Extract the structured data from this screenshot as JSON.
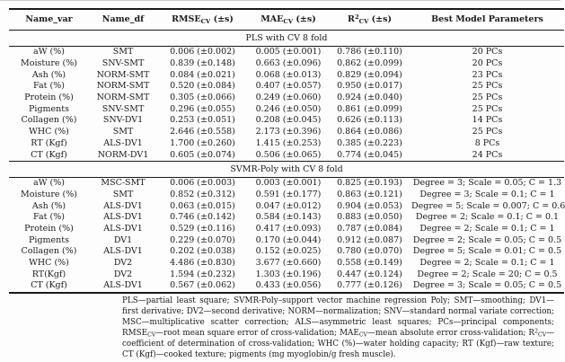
{
  "colors": {
    "text": "#1a1a1a",
    "rule": "#1a1a1a",
    "background": "#fdfdfd",
    "page_top_edge": "#cccccc"
  },
  "table": {
    "columns": [
      {
        "name": "name_var",
        "width": 87,
        "label": [
          {
            "t": "Name_var"
          }
        ]
      },
      {
        "name": "name_df",
        "width": 74,
        "label": [
          {
            "t": "Name_df"
          }
        ]
      },
      {
        "name": "rmse_cv",
        "width": 99,
        "label": [
          {
            "t": "RMSE"
          },
          {
            "sub": "CV"
          },
          {
            "t": " (±s)"
          }
        ]
      },
      {
        "name": "mae_cv",
        "width": 88,
        "label": [
          {
            "t": "MAE"
          },
          {
            "sub": "CV"
          },
          {
            "t": " (±s)"
          }
        ]
      },
      {
        "name": "r2_cv",
        "width": 89,
        "label": [
          {
            "t": "R"
          },
          {
            "sup": "2"
          },
          {
            "sub": "CV"
          },
          {
            "t": " (±s)"
          }
        ]
      },
      {
        "name": "best_model_parameters",
        "width": 169,
        "label": [
          {
            "t": "Best Model Parameters"
          }
        ]
      }
    ],
    "sections": [
      {
        "title": "PLS with CV 8 fold",
        "rows": [
          [
            "aW (%)",
            "SMT",
            "0.006 (±0.002)",
            "0.005 (±0.001)",
            "0.786 (±0.110)",
            "20 PCs"
          ],
          [
            "Moisture (%)",
            "SNV-SMT",
            "0.839 (±0.148)",
            "0.663 (±0.096)",
            "0.862 (±0.099)",
            "20 PCs"
          ],
          [
            "Ash (%)",
            "NORM-SMT",
            "0.084 (±0.021)",
            "0.068 (±0.013)",
            "0.829 (±0.094)",
            "23 PCs"
          ],
          [
            "Fat (%)",
            "NORM-SMT",
            "0.520 (±0.084)",
            "0.407 (±0.057)",
            "0.950 (±0.017)",
            "25 PCs"
          ],
          [
            "Protein (%)",
            "NORM-SMT",
            "0.305 (±0.066)",
            "0.249 (±0.060)",
            "0.924 (±0.040)",
            "25 PCs"
          ],
          [
            "Pigments",
            "SNV-SMT",
            "0.296 (±0.055)",
            "0.246 (±0.050)",
            "0.861 (±0.099)",
            "25 PCs"
          ],
          [
            "Collagen (%)",
            "SNV-DV1",
            "0.253 (±0.051)",
            "0.208 (±0.045)",
            "0.626 (±0.113)",
            "14 PCs"
          ],
          [
            "WHC (%)",
            "SMT",
            "2.646 (±0.558)",
            "2.173 (±0.396)",
            "0.864 (±0.086)",
            "25 PCs"
          ],
          [
            "RT (Kgf)",
            "ALS-DV1",
            "1.700 (±0.260)",
            "1.415 (±0.253)",
            "0.385 (±0.223)",
            "8 PCs"
          ],
          [
            "CT (Kgf)",
            "NORM-DV1",
            "0.605 (±0.074)",
            "0.506 (±0.065)",
            "0.774 (±0.045)",
            "24 PCs"
          ]
        ]
      },
      {
        "title": "SVMR-Poly with CV 8 fold",
        "rows": [
          [
            "aW (%)",
            "MSC-SMT",
            "0.006 (±0.003)",
            "0.003 (±0.001)",
            "0.825 (±0.193)",
            "Degree = 3; Scale = 0.05; C = 1.3"
          ],
          [
            "Moisture (%)",
            "SMT",
            "0.852 (±0.312)",
            "0.591 (±0.177)",
            "0.863 (±0.121)",
            "Degree = 3; Scale = 0.1; C = 1"
          ],
          [
            "Ash (%)",
            "ALS-DV1",
            "0.063 (±0.015)",
            "0.047 (±0.012)",
            "0.904 (±0.053)",
            "Degree = 5; Scale = 0.007; C = 0.6"
          ],
          [
            "Fat (%)",
            "ALS-DV1",
            "0.746 (±0.142)",
            "0.584 (±0.143)",
            "0.883 (±0.050)",
            "Degree = 2; Scale = 0.1; C = 0.1"
          ],
          [
            "Protein (%)",
            "ALS-DV1",
            "0.529 (±0.116)",
            "0.417 (±0.093)",
            "0.787 (±0.084)",
            "Degree = 2; Scale = 0.1; C = 1"
          ],
          [
            "Pigments",
            "DV1",
            "0.229 (±0.070)",
            "0.170 (±0.044)",
            "0.912 (±0.087)",
            "Degree = 2; Scale = 0.05; C = 0.5"
          ],
          [
            "Collagen (%)",
            "ALS-DV1",
            "0.202 (±0.038)",
            "0.152 (±0.025)",
            "0.780 (±0.070)",
            "Degree = 5; Scale = 0.01; C = 0.5"
          ],
          [
            "WHC (%)",
            "DV2",
            "4.486 (±0.830)",
            "3.677 (±0.660)",
            "0.558 (±0.149)",
            "Degree = 2; Scale = 0.1; C = 1"
          ],
          [
            "RT(Kgf)",
            "DV2",
            "1.594 (±0.232)",
            "1.303 (±0.196)",
            "0.447 (±0.124)",
            "Degree = 2; Scale = 20; C = 0.5"
          ],
          [
            "CT (Kgf)",
            "ALS-DV1",
            "0.567 (±0.062)",
            "0.433 (±0.056)",
            "0.777 (±0.126)",
            "Degree = 3; Scale = 0.05; C = 0.5"
          ]
        ]
      }
    ]
  },
  "footnote_segments": [
    {
      "t": "PLS—partial least square; SVMR-Poly–support vector machine regression Poly; SMT—smoothing; DV1—first derivative; DV2—second derivative; NORM—normalization; SNV—standard normal variate correction; MSC—multiplicative scatter correction; ALS—asymmetric least squares; PCs—principal components; RMSE"
    },
    {
      "sub": "CV"
    },
    {
      "t": "—root mean square error of cross-validation; MAE"
    },
    {
      "sub": "CV"
    },
    {
      "t": "—mean absolute error cross-validation; R"
    },
    {
      "sup": "2"
    },
    {
      "sub": "CV"
    },
    {
      "t": "—coefficient of determination of cross-validation; WHC (%)—water holding capacity; RT (Kgf)—raw texture; CT (Kgf)—cooked texture; pigments (mg myoglobin/g fresh muscle)."
    }
  ]
}
